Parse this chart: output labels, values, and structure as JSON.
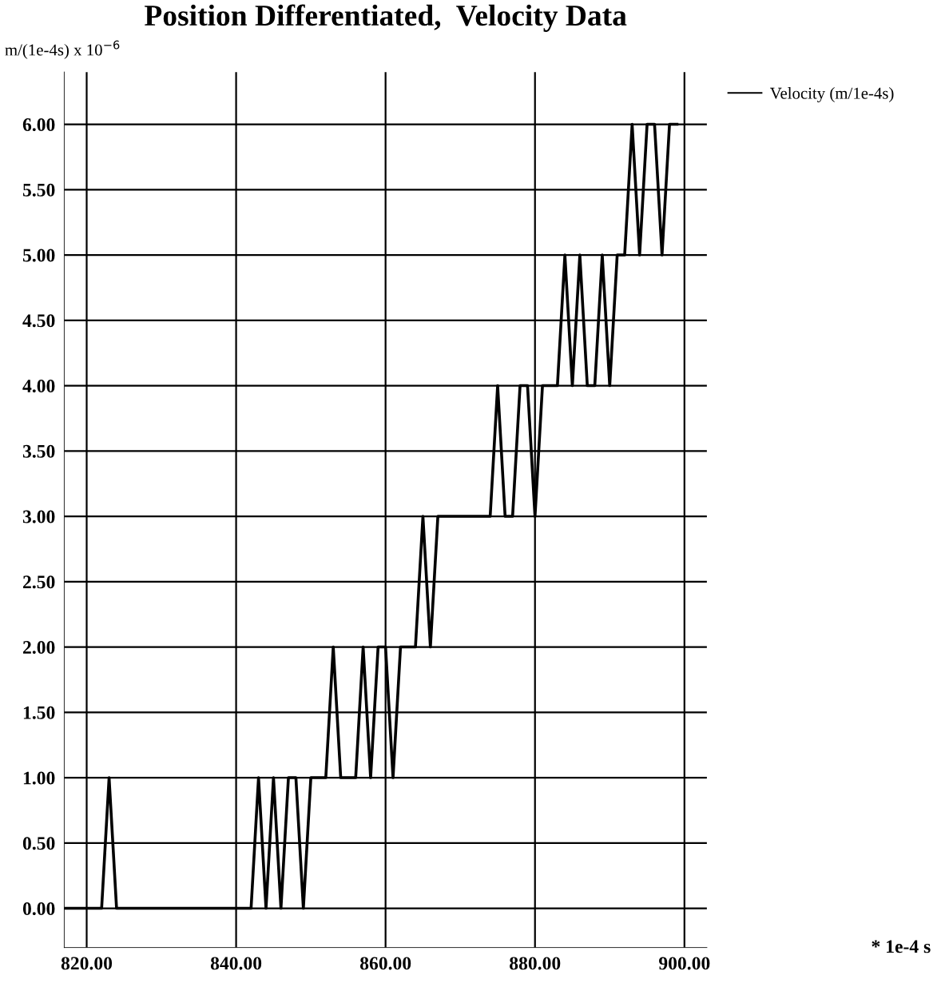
{
  "chart_data": {
    "type": "line",
    "title": "Position Differentiated,  Velocity Data",
    "ylabel": "m/(1e-4s) x 10$^{−6}$",
    "annotations": [
      "* 1e-4 s"
    ],
    "x": [
      817,
      818,
      819,
      820,
      821,
      822,
      823,
      824,
      825,
      826,
      827,
      828,
      829,
      830,
      831,
      832,
      833,
      834,
      835,
      836,
      837,
      838,
      839,
      840,
      841,
      842,
      843,
      844,
      845,
      846,
      847,
      848,
      849,
      850,
      851,
      852,
      853,
      854,
      855,
      856,
      857,
      858,
      859,
      860,
      861,
      862,
      863,
      864,
      865,
      866,
      867,
      868,
      869,
      870,
      871,
      872,
      873,
      874,
      875,
      876,
      877,
      878,
      879,
      880,
      881,
      882,
      883,
      884,
      885,
      886,
      887,
      888,
      889,
      890,
      891,
      892,
      893,
      894,
      895,
      896,
      897,
      898,
      899
    ],
    "series": [
      {
        "name": "Velocity (m/1e-4s)",
        "color": "#000000",
        "values": [
          0,
          0,
          0,
          0,
          0,
          0,
          1,
          0,
          0,
          0,
          0,
          0,
          0,
          0,
          0,
          0,
          0,
          0,
          0,
          0,
          0,
          0,
          0,
          0,
          0,
          0,
          1,
          0,
          1,
          0,
          1,
          1,
          0,
          1,
          1,
          1,
          2,
          1,
          1,
          1,
          2,
          1,
          2,
          2,
          1,
          2,
          2,
          2,
          3,
          2,
          3,
          3,
          3,
          3,
          3,
          3,
          3,
          3,
          4,
          3,
          3,
          4,
          4,
          3,
          4,
          4,
          4,
          5,
          4,
          5,
          4,
          4,
          5,
          4,
          5,
          5,
          6,
          5,
          6,
          6,
          5,
          6,
          6
        ]
      }
    ],
    "xlim": [
      817,
      903
    ],
    "ylim": [
      -0.3,
      6.4
    ],
    "xticks": [
      {
        "value": 820,
        "label": "820.00"
      },
      {
        "value": 840,
        "label": "840.00"
      },
      {
        "value": 860,
        "label": "860.00"
      },
      {
        "value": 880,
        "label": "880.00"
      },
      {
        "value": 900,
        "label": "900.00"
      }
    ],
    "yticks": [
      {
        "value": 0,
        "label": "0.00"
      },
      {
        "value": 0.5,
        "label": "0.50"
      },
      {
        "value": 1,
        "label": "1.00"
      },
      {
        "value": 1.5,
        "label": "1.50"
      },
      {
        "value": 2,
        "label": "2.00"
      },
      {
        "value": 2.5,
        "label": "2.50"
      },
      {
        "value": 3,
        "label": "3.00"
      },
      {
        "value": 3.5,
        "label": "3.50"
      },
      {
        "value": 4,
        "label": "4.00"
      },
      {
        "value": 4.5,
        "label": "4.50"
      },
      {
        "value": 5,
        "label": "5.00"
      },
      {
        "value": 5.5,
        "label": "5.50"
      },
      {
        "value": 6,
        "label": "6.00"
      }
    ],
    "grid": true,
    "legend": "top right",
    "marker": "none",
    "line_style": "solid"
  }
}
